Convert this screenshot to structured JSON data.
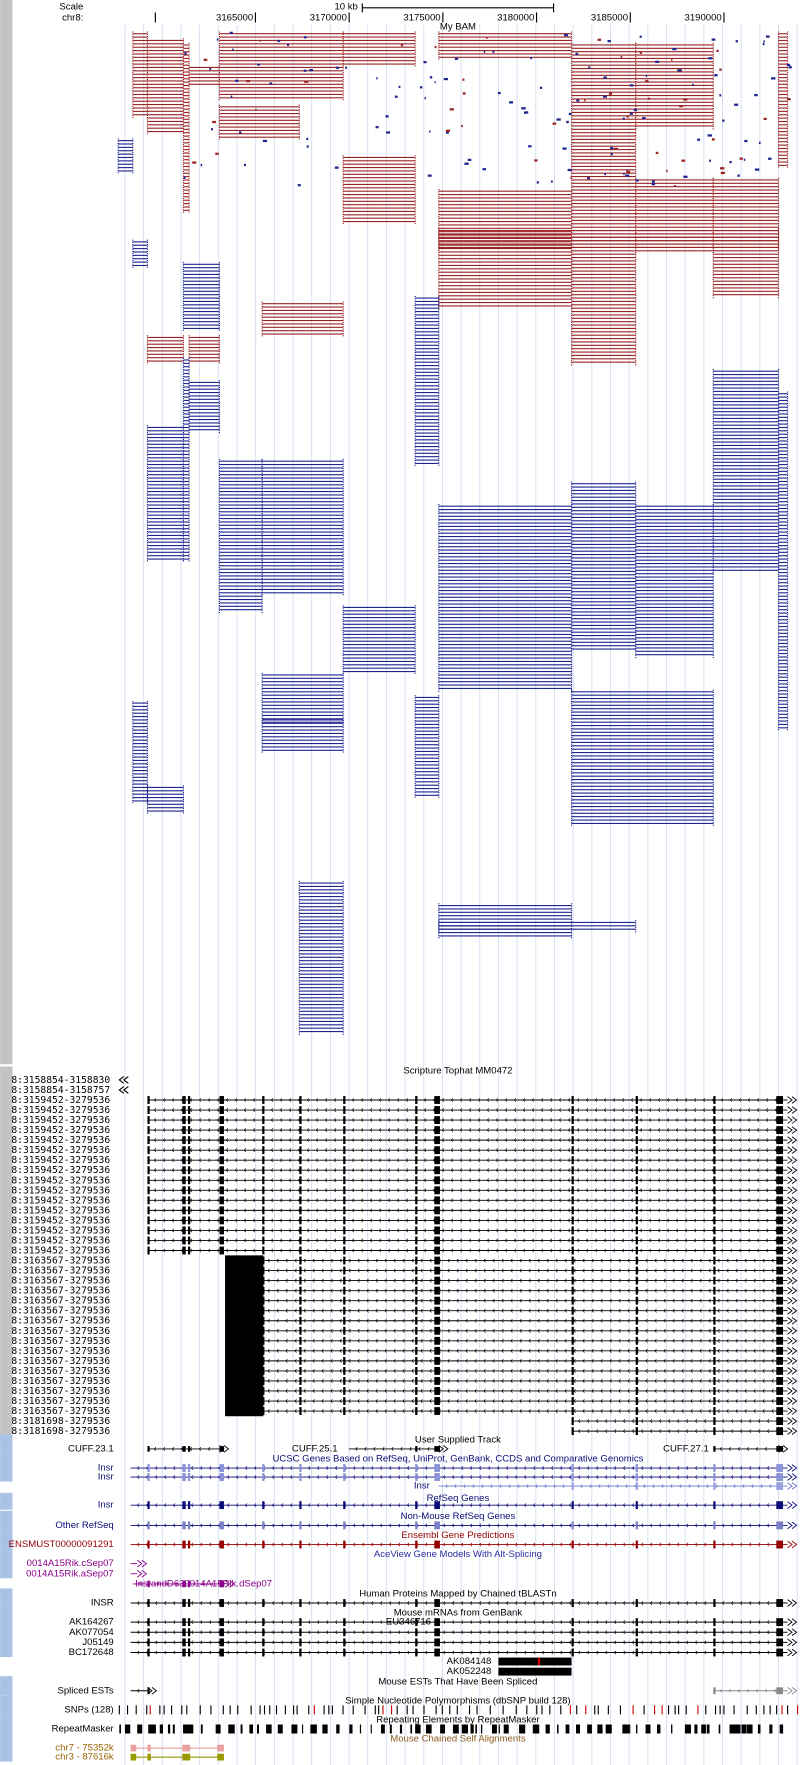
{
  "ruler": {
    "scale_label": "Scale",
    "chrom_label": "chr8:",
    "scale_bar": "10 kb",
    "ticks": [
      "3165000",
      "3170000",
      "3175000",
      "3180000",
      "3185000",
      "3190000"
    ]
  },
  "tracks": [
    {
      "title": "My BAM"
    },
    {
      "title": "Scripture Tophat MM0472",
      "labels": [
        "8:3158854-3158830",
        "8:3158854-3158757",
        "8:3159452-3279536",
        "8:3159452-3279536",
        "8:3159452-3279536",
        "8:3159452-3279536",
        "8:3159452-3279536",
        "8:3159452-3279536",
        "8:3159452-3279536",
        "8:3159452-3279536",
        "8:3159452-3279536",
        "8:3159452-3279536",
        "8:3159452-3279536",
        "8:3159452-3279536",
        "8:3159452-3279536",
        "8:3159452-3279536",
        "8:3159452-3279536",
        "8:3159452-3279536",
        "8:3163567-3279536",
        "8:3163567-3279536",
        "8:3163567-3279536",
        "8:3163567-3279536",
        "8:3163567-3279536",
        "8:3163567-3279536",
        "8:3163567-3279536",
        "8:3163567-3279536",
        "8:3163567-3279536",
        "8:3163567-3279536",
        "8:3163567-3279536",
        "8:3163567-3279536",
        "8:3163567-3279536",
        "8:3163567-3279536",
        "8:3163567-3279536",
        "8:3163567-3279536",
        "8:3181698-3279536",
        "8:3181698-3279536"
      ]
    },
    {
      "title": "User Supplied Track",
      "labels": [
        "CUFF.23.1"
      ],
      "inline": [
        "CUFF.25.1",
        "CUFF.27.1"
      ]
    },
    {
      "title": "UCSC Genes Based on RefSeq, UniProt, GenBank, CCDS and Comparative Genomics",
      "labels": [
        "Insr",
        "Insr"
      ],
      "inline": [
        "Insr"
      ]
    },
    {
      "title": "RefSeq Genes",
      "labels": [
        "Insr"
      ]
    },
    {
      "title": "Non-Mouse RefSeq Genes",
      "labels": [
        "Other RefSeq"
      ]
    },
    {
      "title": "Ensembl Gene Predictions",
      "labels": [
        "ENSMUST00000091291"
      ]
    },
    {
      "title": "AceView Gene Models With Alt-Splicing",
      "labels": [
        "0014A15Rik.cSep07",
        "0014A15Rik.aSep07"
      ],
      "inline": [
        "InsrandD630014A15Rik.dSep07"
      ]
    },
    {
      "title": "Human Proteins Mapped by Chained tBLASTn",
      "labels": [
        "INSR"
      ]
    },
    {
      "title": "Mouse mRNAs from GenBank",
      "labels": [
        "AK164267",
        "AK077054",
        "J05149",
        "BC172648"
      ],
      "inline": [
        "EU346716",
        "AK084148",
        "AK052248"
      ]
    },
    {
      "title": "Mouse ESTs That Have Been Spliced",
      "labels": [
        "Spliced ESTs"
      ]
    },
    {
      "title": "Simple Nucleotide Polymorphisms (dbSNP build 128)",
      "labels": [
        "SNPs (128)"
      ]
    },
    {
      "title": "Repeating Elements by RepeatMasker",
      "labels": [
        "RepeatMasker"
      ]
    },
    {
      "title": "Mouse Chained Self Alignments",
      "labels": [
        "chr7 - 75352k",
        "chr3 - 87616k"
      ]
    }
  ]
}
